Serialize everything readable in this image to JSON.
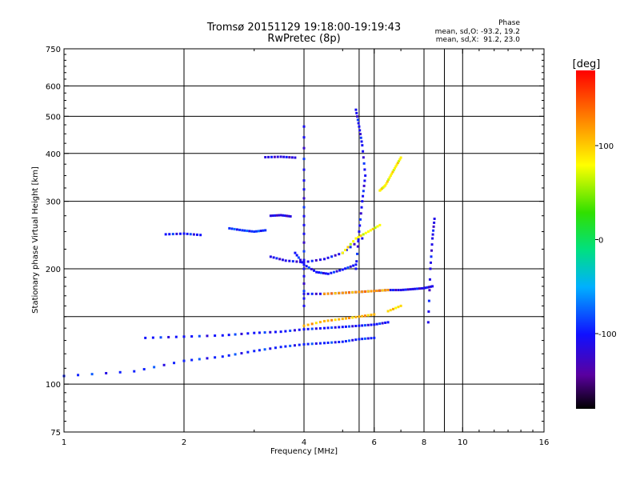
{
  "chart_data": {
    "type": "scatter",
    "title": "Tromsø 20151129 19:18:00-19:19:43",
    "subtitle": "RwPretec (8p)",
    "xlabel": "Frequency [MHz]",
    "ylabel": "Stationary phase Virtual Height [km]",
    "x_scale": "log",
    "y_scale": "log",
    "xlim": [
      1,
      16
    ],
    "ylim": [
      75,
      750
    ],
    "x_ticks": [
      1,
      2,
      4,
      6,
      8,
      10,
      16
    ],
    "x_grid_extra": [
      5.5,
      9
    ],
    "y_ticks": [
      75,
      100,
      200,
      300,
      400,
      500,
      600,
      750
    ],
    "y_grid_extra": [
      150
    ],
    "grid": true,
    "phase_box": {
      "title": "Phase",
      "o_mode": "mean, sd,O: -93.2, 19.2",
      "x_mode": "mean, sd,X:  91.2, 23.0"
    },
    "colorbar": {
      "label": "[deg]",
      "range": [
        -180,
        180
      ],
      "ticks": [
        100,
        0,
        -100
      ]
    },
    "traces": [
      {
        "mode": "O",
        "x": [
          1.0,
          1.5,
          2.0,
          2.5,
          3.0,
          3.5,
          4.0,
          4.5,
          5.0,
          5.5,
          6.0
        ],
        "y": [
          105,
          108,
          115,
          118,
          122,
          125,
          127,
          128,
          129,
          131,
          132
        ],
        "phase": -95
      },
      {
        "mode": "O",
        "x": [
          1.6,
          2.0,
          2.5,
          3.0,
          3.5,
          4.0,
          4.5,
          5.0,
          5.5,
          6.0,
          6.5
        ],
        "y": [
          132,
          133,
          134,
          136,
          137,
          139,
          140,
          141,
          142,
          143,
          145
        ],
        "phase": -100
      },
      {
        "mode": "O",
        "x": [
          4.0,
          4.5,
          5.0,
          5.5,
          6.0,
          6.5,
          7.0,
          7.5,
          8.0,
          8.4
        ],
        "y": [
          172,
          172,
          173,
          174,
          175,
          176,
          176,
          177,
          178,
          180
        ],
        "phase": -110
      },
      {
        "mode": "O",
        "x": [
          1.8,
          2.0,
          2.2
        ],
        "y": [
          246,
          247,
          245
        ],
        "phase": -100
      },
      {
        "mode": "O",
        "x": [
          2.6,
          2.8,
          3.0,
          3.2
        ],
        "y": [
          255,
          252,
          250,
          252
        ],
        "phase": -90
      },
      {
        "mode": "O",
        "x": [
          3.3,
          3.5,
          3.7
        ],
        "y": [
          275,
          276,
          274
        ],
        "phase": -115
      },
      {
        "mode": "O",
        "x": [
          3.2,
          3.5,
          3.8
        ],
        "y": [
          391,
          392,
          390
        ],
        "phase": -115
      },
      {
        "mode": "O",
        "x": [
          3.8,
          4.0,
          4.3,
          4.6,
          5.0,
          5.4
        ],
        "y": [
          220,
          205,
          196,
          194,
          199,
          205
        ],
        "phase": -100
      },
      {
        "mode": "O",
        "x": [
          3.3,
          3.6,
          4.0,
          4.5,
          5.0,
          5.6
        ],
        "y": [
          215,
          210,
          208,
          212,
          220,
          240
        ],
        "phase": -110
      },
      {
        "mode": "O",
        "x": [
          5.4,
          5.5,
          5.6,
          5.7,
          5.6,
          5.5,
          5.4
        ],
        "y": [
          200,
          250,
          300,
          350,
          420,
          470,
          520
        ],
        "phase": -105
      },
      {
        "mode": "O",
        "x": [
          4.0,
          4.0,
          4.0,
          4.0,
          4.0
        ],
        "y": [
          160,
          200,
          260,
          340,
          470
        ],
        "phase": -105
      },
      {
        "mode": "O",
        "x": [
          8.2,
          8.3,
          8.4,
          8.5
        ],
        "y": [
          145,
          200,
          240,
          270
        ],
        "phase": -110
      },
      {
        "mode": "X",
        "x": [
          4.0,
          4.5,
          5.0,
          5.5,
          6.0
        ],
        "y": [
          142,
          146,
          148,
          150,
          152
        ],
        "phase": 110
      },
      {
        "mode": "X",
        "x": [
          4.5,
          5.0,
          5.5,
          6.0,
          6.5
        ],
        "y": [
          172,
          173,
          174,
          175,
          176
        ],
        "phase": 120
      },
      {
        "mode": "X",
        "x": [
          5.0,
          5.4,
          5.8,
          6.2
        ],
        "y": [
          220,
          240,
          250,
          260
        ],
        "phase": 80
      },
      {
        "mode": "X",
        "x": [
          6.2,
          6.4,
          6.6,
          6.8,
          7.0
        ],
        "y": [
          320,
          330,
          350,
          370,
          390
        ],
        "phase": 85
      },
      {
        "mode": "X",
        "x": [
          6.5,
          7.0
        ],
        "y": [
          155,
          160
        ],
        "phase": 95
      }
    ]
  }
}
